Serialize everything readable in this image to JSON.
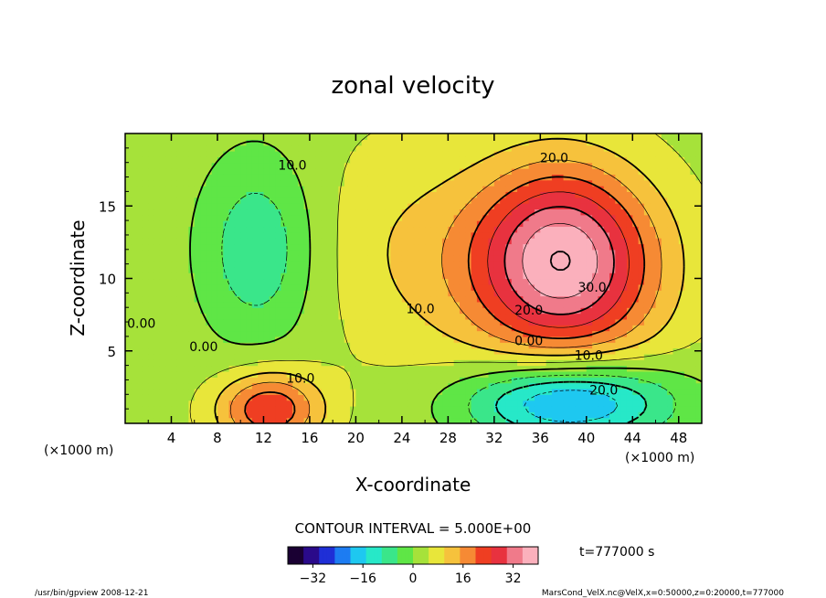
{
  "chart_data": {
    "type": "heatmap",
    "title": "zonal velocity",
    "xlabel": "X-coordinate",
    "ylabel": "Z-coordinate",
    "x_unit": "(×1000 m)",
    "y_unit": "(×1000 m)",
    "xlim": [
      0,
      50
    ],
    "ylim": [
      0,
      20
    ],
    "x_ticks": [
      "4",
      "8",
      "12",
      "16",
      "20",
      "24",
      "28",
      "32",
      "36",
      "40",
      "44",
      "48"
    ],
    "y_ticks": [
      "5",
      "10",
      "15"
    ],
    "x_tick_values": [
      4,
      8,
      12,
      16,
      20,
      24,
      28,
      32,
      36,
      40,
      44,
      48
    ],
    "y_tick_values": [
      5,
      10,
      15
    ],
    "contour_interval_label": "CONTOUR INTERVAL = 5.000E+00",
    "contour_labels": [
      {
        "text": "10.0",
        "x": 14.5,
        "z": 17.5
      },
      {
        "text": "0.00",
        "x": 1.4,
        "z": 6.6
      },
      {
        "text": "0.00",
        "x": 6.8,
        "z": 5.0
      },
      {
        "text": "10.0",
        "x": 15.2,
        "z": 2.8
      },
      {
        "text": "10.0",
        "x": 25.6,
        "z": 7.6
      },
      {
        "text": "20.0",
        "x": 37.2,
        "z": 18.0
      },
      {
        "text": "30.0",
        "x": 40.5,
        "z": 9.1
      },
      {
        "text": "20.0",
        "x": 35.0,
        "z": 7.5
      },
      {
        "text": "0.00",
        "x": 35.0,
        "z": 5.4
      },
      {
        "text": "10.0",
        "x": 40.2,
        "z": 4.4
      },
      {
        "text": "20.0",
        "x": 41.5,
        "z": 2.0
      }
    ],
    "colorbar": {
      "ticks": [
        "−32",
        "−16",
        "0",
        "16",
        "32"
      ],
      "tick_values": [
        -32,
        -16,
        0,
        16,
        32
      ],
      "range": [
        -40,
        40
      ],
      "colors": [
        "#1a0033",
        "#2a0a8a",
        "#1f2fd6",
        "#1d7cf2",
        "#1ec8f0",
        "#27e8c8",
        "#3ae68a",
        "#5fe646",
        "#a6e23a",
        "#e8e63a",
        "#f6c23c",
        "#f68a34",
        "#ef3e22",
        "#e8323f",
        "#f07a8a",
        "#fbb0bc"
      ]
    },
    "field_blobs": [
      {
        "x": 38.0,
        "z": 10.7,
        "rx": 8.5,
        "rz": 6.5,
        "amp": 30
      },
      {
        "x": 37.5,
        "z": 13.0,
        "rx": 6.5,
        "rz": 6.0,
        "amp": 8
      },
      {
        "x": 12.5,
        "z": 1.0,
        "rx": 4.5,
        "rz": 2.6,
        "amp": 22
      },
      {
        "x": 11.5,
        "z": 12.0,
        "rx": 5.0,
        "rz": 6.5,
        "amp": -12
      },
      {
        "x": 38.5,
        "z": 1.5,
        "rx": 9.0,
        "rz": 2.8,
        "amp": -26
      },
      {
        "x": 24.0,
        "z": 12.0,
        "rx": 8.0,
        "rz": 8.0,
        "amp": 6
      }
    ]
  },
  "time_label": "t=777000 s",
  "footer": {
    "left": "/usr/bin/gpview   2008-12-21",
    "right": "MarsCond_VelX.nc@VelX,x=0:50000,z=0:20000,t=777000"
  }
}
